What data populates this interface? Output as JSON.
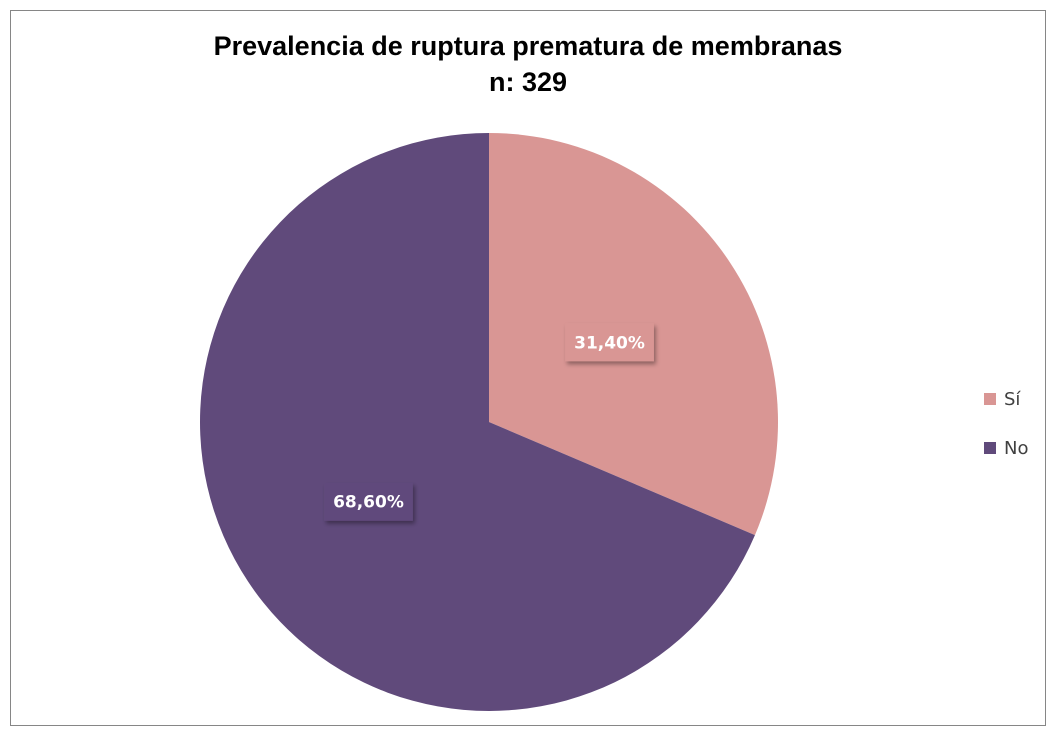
{
  "chart_data": {
    "type": "pie",
    "title": "Prevalencia de ruptura prematura de membranas",
    "subtitle": "n: 329",
    "categories": [
      "Sí",
      "No"
    ],
    "values": [
      31.4,
      68.6
    ],
    "value_labels": [
      "31,40%",
      "68,60%"
    ],
    "colors": [
      "#d99694",
      "#604a7b"
    ],
    "legend": "right"
  }
}
